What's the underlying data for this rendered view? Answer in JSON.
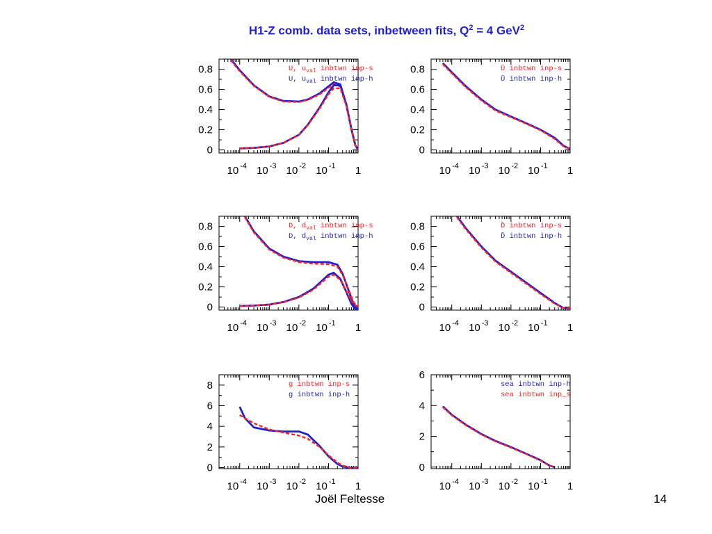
{
  "title": {
    "prefix": "H1-Z comb. data sets, inbetween fits, Q",
    "sup1": "2",
    "middle": " = 4 GeV",
    "sup2": "2"
  },
  "footer": {
    "author": "Joël Feltesse",
    "page": "14"
  },
  "colors": {
    "fit_s": "#ff2020",
    "fit_h": "#1f1fd6",
    "title": "#1f1fd6"
  },
  "chart_data": [
    {
      "type": "line",
      "x_scale": "log",
      "xlim": [
        2e-05,
        1
      ],
      "ylim": [
        -0.03,
        0.9
      ],
      "xticks": [
        {
          "base": "10",
          "exp": "-4"
        },
        {
          "base": "10",
          "exp": "-3"
        },
        {
          "base": "10",
          "exp": "-2"
        },
        {
          "base": "10",
          "exp": "-1"
        },
        {
          "base": "1",
          "exp": ""
        }
      ],
      "yticks": [
        "0",
        "0.2",
        "0.4",
        "0.6",
        "0.8"
      ],
      "legend": [
        {
          "text": "U, u",
          "sub": "val",
          "suffix": "  inbtwn inp-s",
          "color": "#ff2020"
        },
        {
          "text": "U, u",
          "sub": "val",
          "suffix": "  inbtwn inp-h",
          "color": "#1f1fd6"
        }
      ],
      "series": [
        {
          "color": "#1f1fd6",
          "style": "solid",
          "x": [
            5e-05,
            0.0001,
            0.0003,
            0.001,
            0.003,
            0.01,
            0.02,
            0.05,
            0.1,
            0.15,
            0.25,
            0.4,
            0.6,
            0.8,
            1.0
          ],
          "y": [
            0.9,
            0.79,
            0.64,
            0.53,
            0.485,
            0.48,
            0.5,
            0.56,
            0.63,
            0.67,
            0.65,
            0.45,
            0.2,
            0.05,
            0.0
          ]
        },
        {
          "color": "#ff2020",
          "style": "dashed",
          "x": [
            5e-05,
            0.0001,
            0.0003,
            0.001,
            0.003,
            0.01,
            0.02,
            0.05,
            0.1,
            0.15,
            0.25,
            0.4,
            0.6,
            0.8,
            1.0
          ],
          "y": [
            0.89,
            0.78,
            0.635,
            0.525,
            0.48,
            0.475,
            0.495,
            0.55,
            0.615,
            0.65,
            0.63,
            0.44,
            0.2,
            0.05,
            0.0
          ]
        },
        {
          "color": "#1f1fd6",
          "style": "solid",
          "x": [
            0.0001,
            0.0003,
            0.001,
            0.003,
            0.01,
            0.02,
            0.05,
            0.1,
            0.15,
            0.25,
            0.4,
            0.6,
            0.8,
            1.0
          ],
          "y": [
            0.015,
            0.02,
            0.035,
            0.07,
            0.15,
            0.25,
            0.42,
            0.57,
            0.64,
            0.64,
            0.45,
            0.2,
            0.05,
            0.0
          ]
        },
        {
          "color": "#ff2020",
          "style": "dashed",
          "x": [
            0.0001,
            0.0003,
            0.001,
            0.003,
            0.01,
            0.02,
            0.05,
            0.1,
            0.15,
            0.25,
            0.4,
            0.6,
            0.8,
            1.0
          ],
          "y": [
            0.015,
            0.02,
            0.035,
            0.07,
            0.15,
            0.245,
            0.41,
            0.55,
            0.61,
            0.61,
            0.44,
            0.2,
            0.05,
            0.0
          ]
        }
      ]
    },
    {
      "type": "line",
      "x_scale": "log",
      "xlim": [
        2e-05,
        1
      ],
      "ylim": [
        -0.03,
        0.9
      ],
      "xticks": [
        {
          "base": "10",
          "exp": "-4"
        },
        {
          "base": "10",
          "exp": "-3"
        },
        {
          "base": "10",
          "exp": "-2"
        },
        {
          "base": "10",
          "exp": "-1"
        },
        {
          "base": "1",
          "exp": ""
        }
      ],
      "yticks": [
        "0",
        "0.2",
        "0.4",
        "0.6",
        "0.8"
      ],
      "legend": [
        {
          "text": "Ū",
          "sub": "",
          "suffix": "  inbtwn inp-s",
          "color": "#ff2020"
        },
        {
          "text": "Ū",
          "sub": "",
          "suffix": "  inbtwn inp-h",
          "color": "#1f1fd6"
        }
      ],
      "series": [
        {
          "color": "#1f1fd6",
          "style": "solid",
          "x": [
            5e-05,
            0.0001,
            0.0003,
            0.001,
            0.003,
            0.01,
            0.03,
            0.1,
            0.3,
            0.6,
            1.0
          ],
          "y": [
            0.86,
            0.77,
            0.63,
            0.5,
            0.4,
            0.33,
            0.27,
            0.2,
            0.12,
            0.04,
            0.01
          ]
        },
        {
          "color": "#ff2020",
          "style": "dashed",
          "x": [
            5e-05,
            0.0001,
            0.0003,
            0.001,
            0.003,
            0.01,
            0.03,
            0.1,
            0.3,
            0.6,
            1.0
          ],
          "y": [
            0.85,
            0.76,
            0.62,
            0.49,
            0.39,
            0.325,
            0.265,
            0.195,
            0.11,
            0.035,
            0.01
          ]
        }
      ]
    },
    {
      "type": "line",
      "x_scale": "log",
      "xlim": [
        2e-05,
        1
      ],
      "ylim": [
        -0.03,
        0.9
      ],
      "xticks": [
        {
          "base": "10",
          "exp": "-4"
        },
        {
          "base": "10",
          "exp": "-3"
        },
        {
          "base": "10",
          "exp": "-2"
        },
        {
          "base": "10",
          "exp": "-1"
        },
        {
          "base": "1",
          "exp": ""
        }
      ],
      "yticks": [
        "0",
        "0.2",
        "0.4",
        "0.6",
        "0.8"
      ],
      "legend": [
        {
          "text": "D, d",
          "sub": "val",
          "suffix": "  inbtwn inp-s",
          "color": "#ff2020"
        },
        {
          "text": "D, d",
          "sub": "val",
          "suffix": "  inbtwn inp-h",
          "color": "#1f1fd6"
        }
      ],
      "series": [
        {
          "color": "#1f1fd6",
          "style": "solid",
          "x": [
            0.00015,
            0.0003,
            0.001,
            0.003,
            0.01,
            0.03,
            0.1,
            0.2,
            0.3,
            0.5,
            0.7,
            1.0
          ],
          "y": [
            0.9,
            0.75,
            0.58,
            0.5,
            0.455,
            0.445,
            0.445,
            0.42,
            0.33,
            0.15,
            0.03,
            -0.02
          ]
        },
        {
          "color": "#ff2020",
          "style": "dashed",
          "x": [
            0.00015,
            0.0003,
            0.001,
            0.003,
            0.01,
            0.03,
            0.1,
            0.2,
            0.3,
            0.5,
            0.7,
            1.0
          ],
          "y": [
            0.89,
            0.74,
            0.57,
            0.49,
            0.445,
            0.43,
            0.425,
            0.4,
            0.32,
            0.16,
            0.05,
            0.0
          ]
        },
        {
          "color": "#1f1fd6",
          "style": "solid",
          "x": [
            0.0001,
            0.0003,
            0.001,
            0.003,
            0.01,
            0.03,
            0.06,
            0.1,
            0.15,
            0.25,
            0.4,
            0.6,
            0.8,
            1.0
          ],
          "y": [
            0.01,
            0.015,
            0.025,
            0.05,
            0.1,
            0.18,
            0.26,
            0.32,
            0.34,
            0.28,
            0.15,
            0.03,
            -0.02,
            -0.03
          ]
        },
        {
          "color": "#ff2020",
          "style": "dashed",
          "x": [
            0.0001,
            0.0003,
            0.001,
            0.003,
            0.01,
            0.03,
            0.06,
            0.1,
            0.15,
            0.25,
            0.4,
            0.6,
            0.8,
            1.0
          ],
          "y": [
            0.01,
            0.015,
            0.024,
            0.048,
            0.095,
            0.17,
            0.245,
            0.3,
            0.32,
            0.27,
            0.16,
            0.06,
            0.02,
            0.0
          ]
        }
      ]
    },
    {
      "type": "line",
      "x_scale": "log",
      "xlim": [
        2e-05,
        1
      ],
      "ylim": [
        -0.03,
        0.9
      ],
      "xticks": [
        {
          "base": "10",
          "exp": "-4"
        },
        {
          "base": "10",
          "exp": "-3"
        },
        {
          "base": "10",
          "exp": "-2"
        },
        {
          "base": "10",
          "exp": "-1"
        },
        {
          "base": "1",
          "exp": ""
        }
      ],
      "yticks": [
        "0",
        "0.2",
        "0.4",
        "0.6",
        "0.8"
      ],
      "legend": [
        {
          "text": "D̄",
          "sub": "",
          "suffix": "  inbtwn inp-s",
          "color": "#ff2020"
        },
        {
          "text": "D̄",
          "sub": "",
          "suffix": "  inbtwn inp-h",
          "color": "#1f1fd6"
        }
      ],
      "series": [
        {
          "color": "#1f1fd6",
          "style": "solid",
          "x": [
            0.00015,
            0.0003,
            0.001,
            0.003,
            0.01,
            0.03,
            0.1,
            0.3,
            0.6,
            1.0
          ],
          "y": [
            0.9,
            0.78,
            0.6,
            0.46,
            0.35,
            0.25,
            0.14,
            0.04,
            -0.01,
            -0.01
          ]
        },
        {
          "color": "#ff2020",
          "style": "dashed",
          "x": [
            0.00015,
            0.0003,
            0.001,
            0.003,
            0.01,
            0.03,
            0.1,
            0.3,
            0.6,
            1.0
          ],
          "y": [
            0.89,
            0.77,
            0.59,
            0.45,
            0.34,
            0.24,
            0.13,
            0.035,
            -0.01,
            -0.01
          ]
        }
      ]
    },
    {
      "type": "line",
      "x_scale": "log",
      "xlim": [
        2e-05,
        1
      ],
      "ylim": [
        -0.1,
        9.0
      ],
      "xticks": [
        {
          "base": "10",
          "exp": "-4"
        },
        {
          "base": "10",
          "exp": "-3"
        },
        {
          "base": "10",
          "exp": "-2"
        },
        {
          "base": "10",
          "exp": "-1"
        },
        {
          "base": "1",
          "exp": ""
        }
      ],
      "yticks": [
        "0",
        "2",
        "4",
        "6",
        "8"
      ],
      "legend": [
        {
          "text": "g",
          "sub": "",
          "suffix": "  inbtwn inp-s",
          "color": "#ff2020"
        },
        {
          "text": "g",
          "sub": "",
          "suffix": "  inbtwn inp-h",
          "color": "#1f1fd6"
        }
      ],
      "series": [
        {
          "color": "#1f1fd6",
          "style": "solid",
          "x": [
            0.0001,
            0.00015,
            0.0003,
            0.001,
            0.003,
            0.01,
            0.02,
            0.05,
            0.1,
            0.2,
            0.3,
            0.5,
            1.0
          ],
          "y": [
            5.9,
            4.8,
            3.9,
            3.6,
            3.5,
            3.5,
            3.2,
            2.1,
            1.1,
            0.35,
            0.1,
            0.0,
            0.0
          ]
        },
        {
          "color": "#ff2020",
          "style": "dashed",
          "x": [
            0.0001,
            0.0003,
            0.001,
            0.003,
            0.01,
            0.02,
            0.05,
            0.1,
            0.2,
            0.3,
            0.5,
            1.0
          ],
          "y": [
            5.1,
            4.3,
            3.7,
            3.4,
            3.1,
            2.8,
            2.0,
            1.2,
            0.5,
            0.2,
            0.0,
            0.0
          ]
        }
      ]
    },
    {
      "type": "line",
      "x_scale": "log",
      "xlim": [
        2e-05,
        1
      ],
      "ylim": [
        -0.1,
        6.0
      ],
      "xticks": [
        {
          "base": "10",
          "exp": "-4"
        },
        {
          "base": "10",
          "exp": "-3"
        },
        {
          "base": "10",
          "exp": "-2"
        },
        {
          "base": "10",
          "exp": "-1"
        },
        {
          "base": "1",
          "exp": ""
        }
      ],
      "yticks": [
        "0",
        "2",
        "4",
        "6"
      ],
      "legend": [
        {
          "text": "sea",
          "sub": "",
          "suffix": "  inbtwn inp-h",
          "color": "#1f1fd6"
        },
        {
          "text": "sea",
          "sub": "",
          "suffix": "  inbtwn inp_s",
          "color": "#ff2020"
        }
      ],
      "series": [
        {
          "color": "#1f1fd6",
          "style": "solid",
          "x": [
            5e-05,
            0.0001,
            0.0003,
            0.001,
            0.003,
            0.01,
            0.03,
            0.1,
            0.2,
            0.3
          ],
          "y": [
            3.95,
            3.4,
            2.75,
            2.15,
            1.7,
            1.3,
            0.9,
            0.45,
            0.1,
            0.0
          ]
        },
        {
          "color": "#ff2020",
          "style": "dashed",
          "x": [
            5e-05,
            0.0001,
            0.0003,
            0.001,
            0.003,
            0.01,
            0.03,
            0.1,
            0.2,
            0.3
          ],
          "y": [
            3.9,
            3.37,
            2.72,
            2.12,
            1.67,
            1.27,
            0.88,
            0.43,
            0.1,
            0.0
          ]
        }
      ]
    }
  ]
}
